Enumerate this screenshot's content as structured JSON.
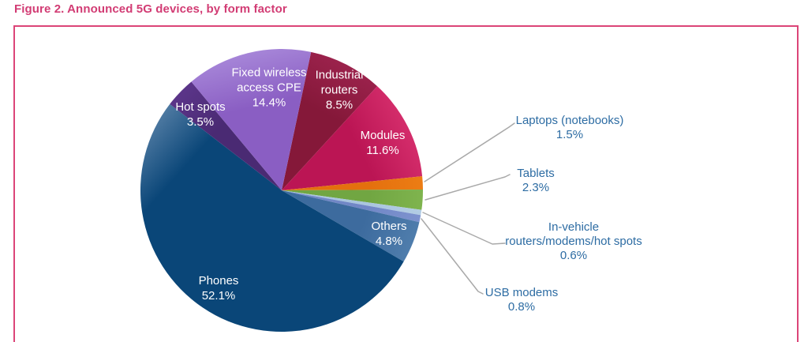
{
  "title": "Figure 2. Announced 5G devices, by form factor",
  "chart_data": {
    "type": "pie",
    "title": "Figure 2. Announced 5G devices, by form factor",
    "units": "%",
    "direction": "clockwise",
    "start_angle_deg_from_top": 12,
    "legend_position": "labels-on-slices-and-callouts",
    "slices": [
      {
        "label": "Industrial routers",
        "label_lines": [
          "Industrial",
          "routers"
        ],
        "value": 8.5,
        "pct_label": "8.5%",
        "color": "#851839",
        "color_light": "#9b224c",
        "label_placement": "inside"
      },
      {
        "label": "Modules",
        "label_lines": [
          "Modules"
        ],
        "value": 11.6,
        "pct_label": "11.6%",
        "color": "#bb1554",
        "color_light": "#d42d6b",
        "label_placement": "inside"
      },
      {
        "label": "Laptops (notebooks)",
        "label_lines": [
          "Laptops (notebooks)"
        ],
        "value": 1.5,
        "pct_label": "1.5%",
        "color": "#e4700e",
        "color_light": "#ec7d14",
        "label_placement": "callout"
      },
      {
        "label": "Tablets",
        "label_lines": [
          "Tablets"
        ],
        "value": 2.3,
        "pct_label": "2.3%",
        "color": "#71a642",
        "color_light": "#7fb44e",
        "label_placement": "callout"
      },
      {
        "label": "In-vehicle routers/modems/hot spots",
        "label_lines": [
          "In-vehicle",
          "routers/modems/hot spots"
        ],
        "value": 0.6,
        "pct_label": "0.6%",
        "color": "#a9c5de",
        "color_light": "#b3cde4",
        "label_placement": "callout"
      },
      {
        "label": "USB modems",
        "label_lines": [
          "USB modems"
        ],
        "value": 0.8,
        "pct_label": "0.8%",
        "color": "#7187c6",
        "color_light": "#7e93cf",
        "label_placement": "callout"
      },
      {
        "label": "Others",
        "label_lines": [
          "Others"
        ],
        "value": 4.8,
        "pct_label": "4.8%",
        "color": "#3d6b9e",
        "color_light": "#4f7dac",
        "label_placement": "inside"
      },
      {
        "label": "Phones",
        "label_lines": [
          "Phones"
        ],
        "value": 52.1,
        "pct_label": "52.1%",
        "color": "#0a4678",
        "color_light": "#4f7aa2",
        "label_placement": "inside"
      },
      {
        "label": "Hot spots",
        "label_lines": [
          "Hot spots"
        ],
        "value": 3.5,
        "pct_label": "3.5%",
        "color": "#4a2a73",
        "color_light": "#5b3589",
        "label_placement": "inside"
      },
      {
        "label": "Fixed wireless access CPE",
        "label_lines": [
          "Fixed wireless",
          "access CPE"
        ],
        "value": 14.4,
        "pct_label": "14.4%",
        "color": "#8a5ec3",
        "color_light": "#a685d8",
        "label_placement": "inside"
      }
    ],
    "inside_label_color": "#ffffff",
    "callout_label_color": "#2d6ca3",
    "leader_line_color": "#a9a9a9"
  },
  "styles": {
    "title_color": "#d23c74",
    "panel_border_color": "#dc4578",
    "background": "#ffffff"
  }
}
